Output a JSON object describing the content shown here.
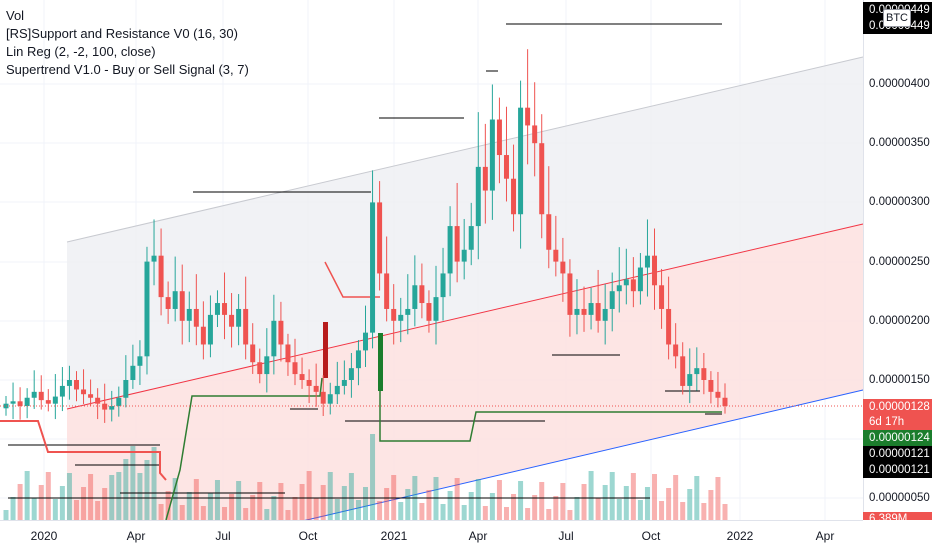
{
  "legend": {
    "vol": "Vol",
    "support_resistance": "[RS]Support and Resistance V0 (16, 30)",
    "lin_reg": "Lin Reg (2, -2, 100, close)",
    "supertrend": "Supertrend V1.0 - Buy or Sell Signal (3, 7)"
  },
  "currency_badge": "BTC",
  "colors": {
    "up": "#26a69a",
    "down": "#ef5350",
    "supertrend_up": "#2e7d32",
    "supertrend_down": "#ef5350",
    "linreg_mid": "#f23645",
    "linreg_low": "#2962ff",
    "channel_upper_fill": "#eeeff2",
    "channel_lower_fill": "#fde0df",
    "resistance": "#000000",
    "price_tag_bg": "#ef5350",
    "support_tag_bg": "#2e7d32"
  },
  "price_tags": [
    {
      "text": "0.00000449",
      "bg": "#000000",
      "fg": "#ffffff",
      "price": 4.49e-06
    },
    {
      "text": "0.00000449",
      "bg": "#000000",
      "fg": "#ffffff",
      "price": 4.49e-06
    },
    {
      "text": "0.00000128",
      "bg": "#ef5350",
      "fg": "#ffffff",
      "price": 1.28e-06
    },
    {
      "text": "6d 17h",
      "bg": "#ef5350",
      "fg": "#ffffff",
      "price": 1.22e-06
    },
    {
      "text": "0.00000124",
      "bg": "#1b7d2c",
      "fg": "#ffffff",
      "price": 1.24e-06
    },
    {
      "text": "0.00000121",
      "bg": "#000000",
      "fg": "#ffffff",
      "price": 1.21e-06
    },
    {
      "text": "0.00000121",
      "bg": "#000000",
      "fg": "#ffffff",
      "price": 1.21e-06
    },
    {
      "text": "6.389M",
      "bg": "#ef5350",
      "fg": "#ffffff",
      "price": 0
    }
  ],
  "chart_data": {
    "type": "candlestick",
    "interval": "weekly",
    "y_axis": {
      "ticks": [
        "0.00000400",
        "0.00000350",
        "0.00000300",
        "0.00000250",
        "0.00000200",
        "0.00000150",
        "0.00000050"
      ],
      "range": [
        5e-07,
        4.6e-06
      ]
    },
    "x_axis": {
      "ticks": [
        "2020",
        "Apr",
        "Jul",
        "Oct",
        "2021",
        "Apr",
        "Jul",
        "Oct",
        "2022",
        "Apr"
      ]
    },
    "candles_close": [
      1.3e-06,
      1.32e-06,
      1.28e-06,
      1.35e-06,
      1.4e-06,
      1.33e-06,
      1.3e-06,
      1.36e-06,
      1.45e-06,
      1.5e-06,
      1.42e-06,
      1.38e-06,
      1.35e-06,
      1.3e-06,
      1.25e-06,
      1.28e-06,
      1.35e-06,
      1.5e-06,
      1.62e-06,
      1.7e-06,
      2.5e-06,
      2.55e-06,
      2.2e-06,
      2.1e-06,
      2.25e-06,
      2e-06,
      2.1e-06,
      1.95e-06,
      1.8e-06,
      2.05e-06,
      2.15e-06,
      2.05e-06,
      1.95e-06,
      2.1e-06,
      1.8e-06,
      1.65e-06,
      1.55e-06,
      1.7e-06,
      2e-06,
      1.8e-06,
      1.65e-06,
      1.55e-06,
      1.5e-06,
      1.45e-06,
      1.4e-06,
      1.3e-06,
      1.38e-06,
      1.45e-06,
      1.5e-06,
      1.6e-06,
      1.75e-06,
      1.9e-06,
      3e-06,
      2.4e-06,
      2.1e-06,
      2e-06,
      2.05e-06,
      2.1e-06,
      2.3e-06,
      2.15e-06,
      2e-06,
      2.2e-06,
      2.4e-06,
      2.8e-06,
      2.5e-06,
      2.6e-06,
      2.8e-06,
      3.3e-06,
      3.1e-06,
      3.7e-06,
      3.4e-06,
      3.2e-06,
      2.9e-06,
      3.8e-06,
      3.65e-06,
      3.5e-06,
      2.9e-06,
      2.6e-06,
      2.5e-06,
      2.4e-06,
      2.05e-06,
      2.1e-06,
      2.05e-06,
      2.15e-06,
      2e-06,
      2.1e-06,
      2.25e-06,
      2.3e-06,
      2.35e-06,
      2.25e-06,
      2.45e-06,
      2.55e-06,
      2.3e-06,
      2.1e-06,
      1.8e-06,
      1.7e-06,
      1.45e-06,
      1.55e-06,
      1.6e-06,
      1.5e-06,
      1.4e-06,
      1.35e-06,
      1.28e-06
    ],
    "volume_label": "6.389M",
    "last_price": "0.00000128",
    "countdown": "6d 17h",
    "supertrend_value": "0.00000124",
    "support_value": "0.00000121"
  }
}
